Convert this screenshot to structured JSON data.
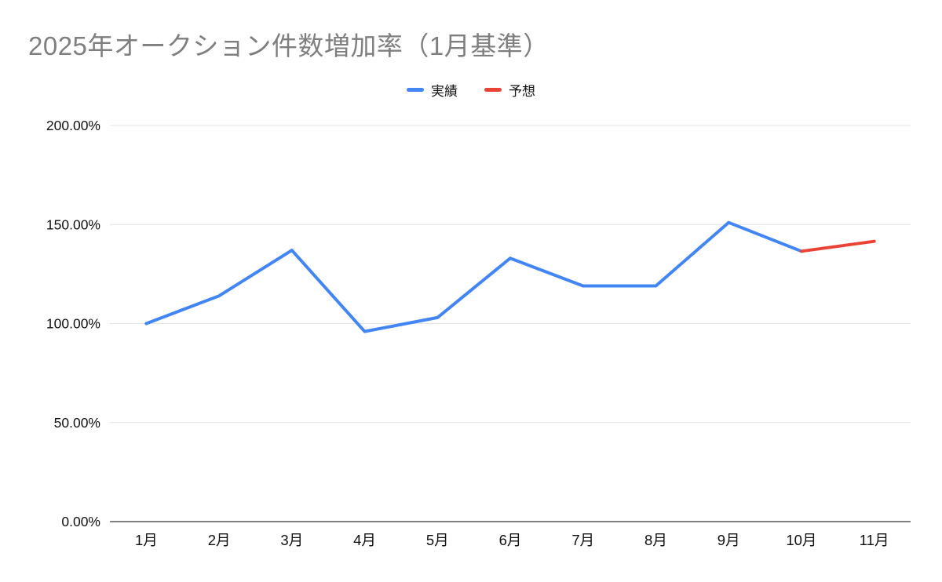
{
  "title": "2025年オークション件数増加率（1月基準）",
  "legend": {
    "items": [
      {
        "label": "実績",
        "color": "#4285f4"
      },
      {
        "label": "予想",
        "color": "#ea4335"
      }
    ]
  },
  "chart_data": {
    "type": "line",
    "title": "2025年オークション件数増加率（1月基準）",
    "categories": [
      "1月",
      "2月",
      "3月",
      "4月",
      "5月",
      "6月",
      "7月",
      "8月",
      "9月",
      "10月",
      "11月"
    ],
    "series": [
      {
        "name": "実績",
        "color": "#4285f4",
        "values": [
          100,
          114,
          137,
          96,
          103,
          133,
          119,
          119,
          151,
          136.5,
          null
        ]
      },
      {
        "name": "予想",
        "color": "#ea4335",
        "values": [
          null,
          null,
          null,
          null,
          null,
          null,
          null,
          null,
          null,
          136.5,
          141.5
        ]
      }
    ],
    "xlabel": "",
    "ylabel": "",
    "ylim": [
      0,
      200
    ],
    "yticks": [
      0,
      50,
      100,
      150,
      200
    ],
    "ytick_labels": [
      "0.00%",
      "50.00%",
      "100.00%",
      "150.00%",
      "200.00%"
    ],
    "grid": true,
    "legend_position": "top",
    "colors": {
      "gridline": "#e3e3e3",
      "baseline": "#595959",
      "axis_text": "#111111",
      "title_text": "#7f7f7f"
    }
  }
}
